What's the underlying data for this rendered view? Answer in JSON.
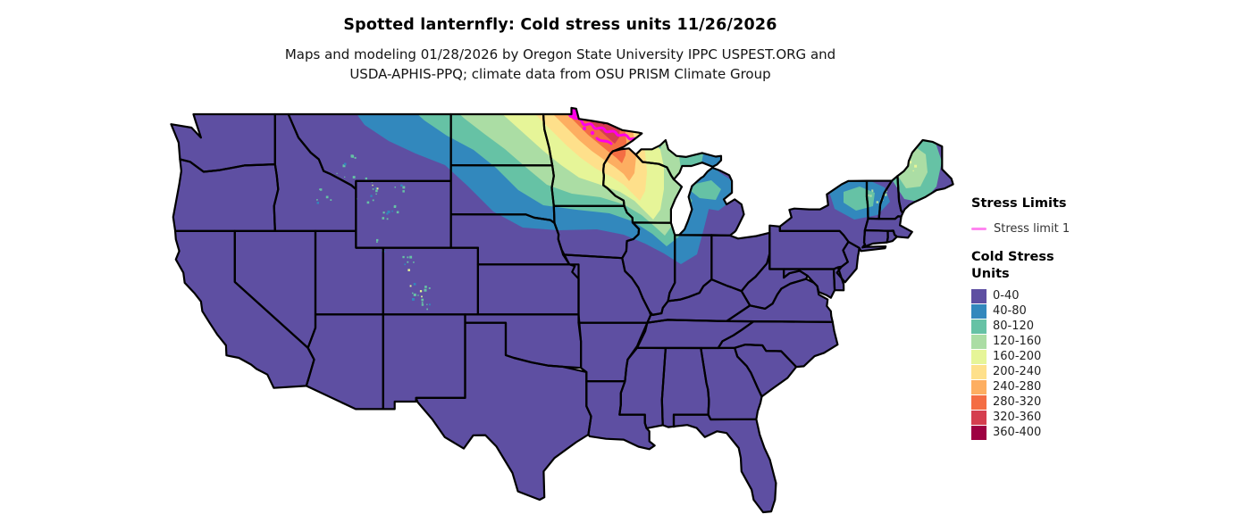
{
  "header": {
    "title": "Spotted lanternfly: Cold stress units 11/26/2026",
    "subtitle_line1": "Maps and modeling 01/28/2026 by Oregon State University IPPC USPEST.ORG and",
    "subtitle_line2": "USDA-APHIS-PPQ; climate data from OSU PRISM Climate Group"
  },
  "legend": {
    "stress_limits": {
      "heading": "Stress Limits",
      "items": [
        {
          "label": "Stress limit 1",
          "line_color": "#ff85f0"
        }
      ]
    },
    "cold_stress_units": {
      "heading_line1": "Cold Stress",
      "heading_line2": "Units",
      "bins": [
        {
          "label": "0-40",
          "color": "#5e4fa2"
        },
        {
          "label": "40-80",
          "color": "#3288bd"
        },
        {
          "label": "80-120",
          "color": "#66c2a5"
        },
        {
          "label": "120-160",
          "color": "#abdda4"
        },
        {
          "label": "160-200",
          "color": "#e6f598"
        },
        {
          "label": "200-240",
          "color": "#fee08b"
        },
        {
          "label": "240-280",
          "color": "#fdae61"
        },
        {
          "label": "280-320",
          "color": "#f46d43"
        },
        {
          "label": "320-360",
          "color": "#d53e4f"
        },
        {
          "label": "360-400",
          "color": "#9e0142"
        }
      ]
    }
  },
  "map": {
    "base_fill": "#5e4fa2",
    "border_color": "#000000",
    "stress_contour_color": "#ff00e6",
    "background": "#ffffff"
  }
}
